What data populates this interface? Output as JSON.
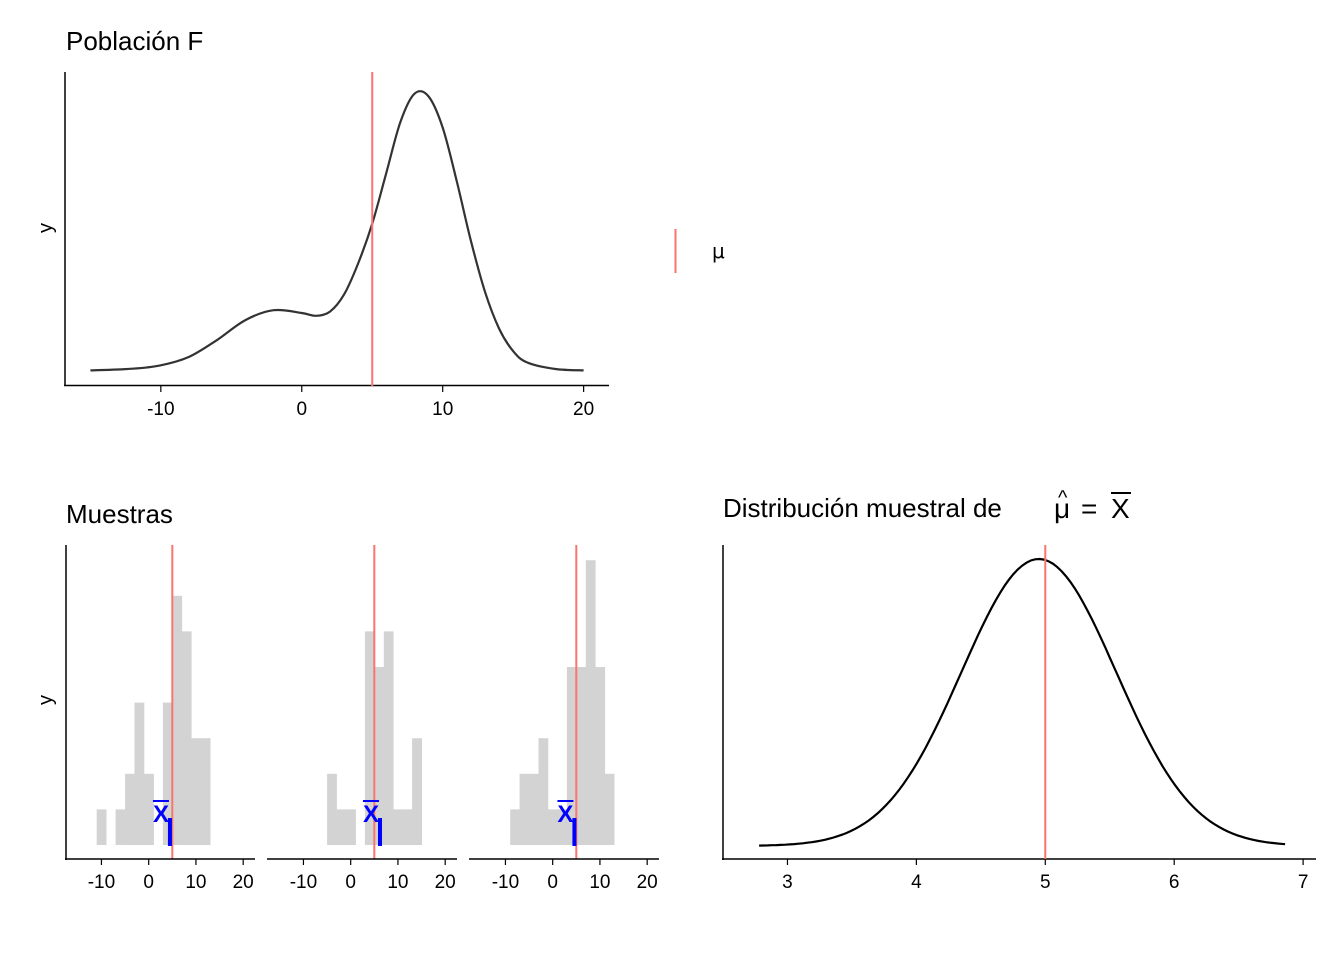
{
  "chart_data": [
    {
      "id": "population",
      "type": "line",
      "title": "Población  F",
      "ylabel": "y",
      "xlim": [
        -16.8,
        21.8
      ],
      "xticks": [
        -10,
        0,
        10,
        20
      ],
      "tick_labels": [
        "-10",
        "0",
        "10",
        "20"
      ],
      "mean_line": 5,
      "density": {
        "x": [
          -15,
          -12,
          -10,
          -8,
          -6,
          -4,
          -2,
          0,
          1,
          2,
          3,
          4,
          5,
          6,
          7,
          8,
          9,
          10,
          11,
          12,
          13,
          14,
          15,
          16,
          18,
          20
        ],
        "y": [
          0.002,
          0.008,
          0.02,
          0.05,
          0.11,
          0.18,
          0.215,
          0.205,
          0.195,
          0.21,
          0.27,
          0.38,
          0.52,
          0.7,
          0.88,
          0.98,
          0.97,
          0.86,
          0.67,
          0.46,
          0.28,
          0.15,
          0.07,
          0.03,
          0.007,
          0.002
        ]
      },
      "legend": {
        "label": "μ",
        "color": "#f8766d",
        "position": "right"
      }
    },
    {
      "id": "samples",
      "type": "bar",
      "title": "Muestras",
      "ylabel": "y",
      "xlim": [
        -17.5,
        22.5
      ],
      "xticks": [
        -10,
        0,
        10,
        20
      ],
      "tick_labels": [
        "-10",
        "0",
        "10",
        "20"
      ],
      "bin_width": 2,
      "mean_line": 5,
      "sample_mean_label": "X",
      "panels": [
        {
          "sample_mean": 4.5,
          "bins": [
            {
              "x0": -11,
              "count": 1
            },
            {
              "x0": -7,
              "count": 1
            },
            {
              "x0": -5,
              "count": 2
            },
            {
              "x0": -3,
              "count": 4
            },
            {
              "x0": -1,
              "count": 2
            },
            {
              "x0": 3,
              "count": 4
            },
            {
              "x0": 5,
              "count": 7
            },
            {
              "x0": 7,
              "count": 6
            },
            {
              "x0": 9,
              "count": 3
            },
            {
              "x0": 11,
              "count": 3
            }
          ]
        },
        {
          "sample_mean": 6.2,
          "bins": [
            {
              "x0": -5,
              "count": 2
            },
            {
              "x0": -3,
              "count": 1
            },
            {
              "x0": -1,
              "count": 1
            },
            {
              "x0": 3,
              "count": 6
            },
            {
              "x0": 5,
              "count": 5
            },
            {
              "x0": 7,
              "count": 6
            },
            {
              "x0": 9,
              "count": 1
            },
            {
              "x0": 11,
              "count": 1
            },
            {
              "x0": 13,
              "count": 3
            }
          ]
        },
        {
          "sample_mean": 4.6,
          "bins": [
            {
              "x0": -9,
              "count": 1
            },
            {
              "x0": -7,
              "count": 2
            },
            {
              "x0": -5,
              "count": 2
            },
            {
              "x0": -3,
              "count": 3
            },
            {
              "x0": -1,
              "count": 1
            },
            {
              "x0": 1,
              "count": 1
            },
            {
              "x0": 3,
              "count": 5
            },
            {
              "x0": 5,
              "count": 5
            },
            {
              "x0": 7,
              "count": 8
            },
            {
              "x0": 9,
              "count": 5
            },
            {
              "x0": 11,
              "count": 2
            }
          ]
        }
      ]
    },
    {
      "id": "sampling-distribution",
      "type": "line",
      "title": "Distribución muestral de",
      "title_math": {
        "lhs": "μ",
        "hat": "^",
        "eq": "=",
        "rhs": "X"
      },
      "xlim": [
        2.5,
        7.1
      ],
      "xticks": [
        3,
        4,
        5,
        6,
        7
      ],
      "tick_labels": [
        "3",
        "4",
        "5",
        "6",
        "7"
      ],
      "mean": 4.95,
      "sd": 0.6,
      "x_range": [
        2.78,
        6.86
      ],
      "mean_line": 5
    }
  ],
  "colors": {
    "mu_line": "#f8766d",
    "density": "#333333",
    "histogram": "#d3d3d3",
    "sample_mean": "#0000ff",
    "axis": "#000000"
  }
}
